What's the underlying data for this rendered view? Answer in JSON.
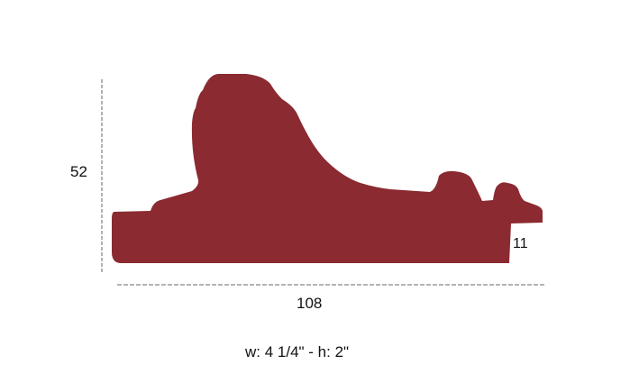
{
  "profile": {
    "fill_color": "#8b2a31"
  },
  "dimensions": {
    "height_label": "52",
    "width_label": "108",
    "rebate_label": "11"
  },
  "caption": "w: 4 1/4\" - h: 2\""
}
